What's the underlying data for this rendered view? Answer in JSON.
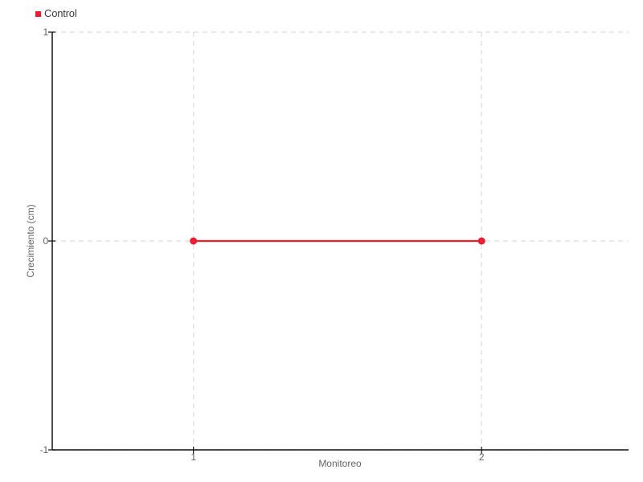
{
  "chart_data": {
    "type": "line",
    "title": "",
    "xlabel": "Monitoreo",
    "ylabel": "Crecimiento (cm)",
    "x_ticks": [
      1,
      2
    ],
    "y_ticks": [
      1,
      0,
      -1
    ],
    "xlim": [
      0.51,
      2.51
    ],
    "ylim": [
      -1,
      1
    ],
    "grid": "dashed",
    "grid_color": "#e2e2e2",
    "axis_color": "#111111",
    "tick_label_color": "#5f5f5f",
    "legend_position": "top-left",
    "series": [
      {
        "name": "Control",
        "color": "#ed1c2e",
        "marker": "circle",
        "x": [
          1,
          2
        ],
        "y": [
          0,
          0
        ]
      }
    ]
  }
}
